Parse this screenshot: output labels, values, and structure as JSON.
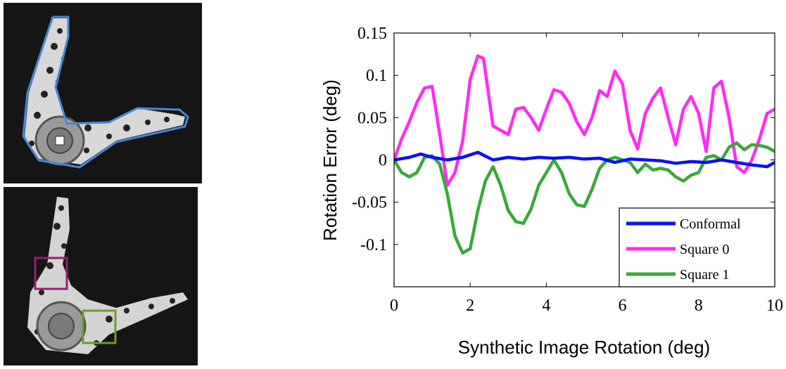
{
  "colors": {
    "conformal": "#0a12f0",
    "square0": "#ff2bf2",
    "square1": "#3aa83a",
    "outline": "#4a86d4",
    "box0": "#a01a78",
    "box1": "#6f9b2a"
  },
  "images": [
    {
      "name": "object-with-conformal-outline"
    },
    {
      "name": "object-with-square-windows"
    }
  ],
  "chart_data": {
    "type": "line",
    "title": "",
    "xlabel": "Synthetic Image Rotation  (deg)",
    "ylabel": "Rotation Error  (deg)",
    "xlim": [
      0,
      10
    ],
    "ylim": [
      -0.15,
      0.15
    ],
    "xticks": [
      "0",
      "2",
      "4",
      "6",
      "8",
      "10"
    ],
    "yticks": [
      "0.15",
      "0.1",
      "0.05",
      "0",
      "-0.05",
      "-0.1"
    ],
    "legend_position": "bottom-right",
    "series": [
      {
        "name": "Conformal",
        "x": [
          0,
          0.4,
          0.7,
          1.0,
          1.4,
          1.8,
          2.2,
          2.6,
          3.0,
          3.4,
          3.8,
          4.2,
          4.6,
          5.0,
          5.4,
          5.8,
          6.2,
          6.6,
          7.0,
          7.4,
          7.8,
          8.2,
          8.6,
          9.0,
          9.4,
          9.8,
          10
        ],
        "y": [
          0.0,
          0.003,
          0.007,
          0.003,
          0.0,
          0.003,
          0.009,
          0.0,
          0.003,
          0.001,
          0.003,
          0.002,
          0.003,
          0.001,
          0.002,
          -0.003,
          0.001,
          0.0,
          -0.001,
          -0.004,
          -0.002,
          -0.003,
          0.0,
          -0.003,
          -0.006,
          -0.008,
          -0.003
        ]
      },
      {
        "name": "Square 0",
        "x": [
          0,
          0.2,
          0.4,
          0.6,
          0.8,
          1.0,
          1.2,
          1.4,
          1.6,
          1.8,
          2.0,
          2.2,
          2.35,
          2.6,
          2.8,
          3.0,
          3.2,
          3.4,
          3.6,
          3.8,
          4.0,
          4.2,
          4.4,
          4.6,
          4.8,
          5.0,
          5.2,
          5.4,
          5.6,
          5.8,
          6.0,
          6.2,
          6.4,
          6.6,
          6.8,
          7.0,
          7.2,
          7.4,
          7.6,
          7.8,
          8.0,
          8.2,
          8.4,
          8.6,
          8.8,
          9.0,
          9.2,
          9.4,
          9.6,
          9.8,
          10
        ],
        "y": [
          0.0,
          0.025,
          0.045,
          0.068,
          0.085,
          0.087,
          0.03,
          -0.03,
          -0.015,
          0.022,
          0.095,
          0.123,
          0.12,
          0.04,
          0.035,
          0.03,
          0.06,
          0.062,
          0.05,
          0.035,
          0.06,
          0.083,
          0.08,
          0.067,
          0.045,
          0.03,
          0.05,
          0.082,
          0.075,
          0.105,
          0.09,
          0.035,
          0.013,
          0.055,
          0.073,
          0.085,
          0.05,
          0.018,
          0.06,
          0.075,
          0.055,
          0.01,
          0.085,
          0.093,
          0.05,
          -0.008,
          -0.015,
          0.0,
          0.025,
          0.055,
          0.06
        ]
      },
      {
        "name": "Square 1",
        "x": [
          0,
          0.2,
          0.4,
          0.6,
          0.8,
          1.0,
          1.2,
          1.4,
          1.6,
          1.8,
          2.0,
          2.2,
          2.4,
          2.6,
          2.8,
          3.0,
          3.2,
          3.4,
          3.6,
          3.8,
          4.0,
          4.2,
          4.4,
          4.6,
          4.8,
          5.0,
          5.2,
          5.4,
          5.6,
          5.8,
          6.0,
          6.2,
          6.4,
          6.6,
          6.8,
          7.0,
          7.2,
          7.4,
          7.6,
          7.8,
          8.0,
          8.2,
          8.4,
          8.6,
          8.8,
          9.0,
          9.2,
          9.4,
          9.6,
          9.8,
          10
        ],
        "y": [
          0.0,
          -0.015,
          -0.02,
          -0.015,
          0.003,
          0.005,
          -0.005,
          -0.04,
          -0.09,
          -0.11,
          -0.105,
          -0.06,
          -0.025,
          -0.008,
          -0.03,
          -0.06,
          -0.073,
          -0.075,
          -0.058,
          -0.03,
          -0.015,
          0.0,
          -0.015,
          -0.04,
          -0.053,
          -0.055,
          -0.035,
          -0.01,
          0.0,
          0.003,
          0.0,
          -0.003,
          -0.015,
          -0.005,
          -0.012,
          -0.01,
          -0.012,
          -0.02,
          -0.025,
          -0.018,
          -0.015,
          0.003,
          0.005,
          0.0,
          0.015,
          0.02,
          0.012,
          0.018,
          0.017,
          0.015,
          0.01
        ]
      }
    ]
  }
}
